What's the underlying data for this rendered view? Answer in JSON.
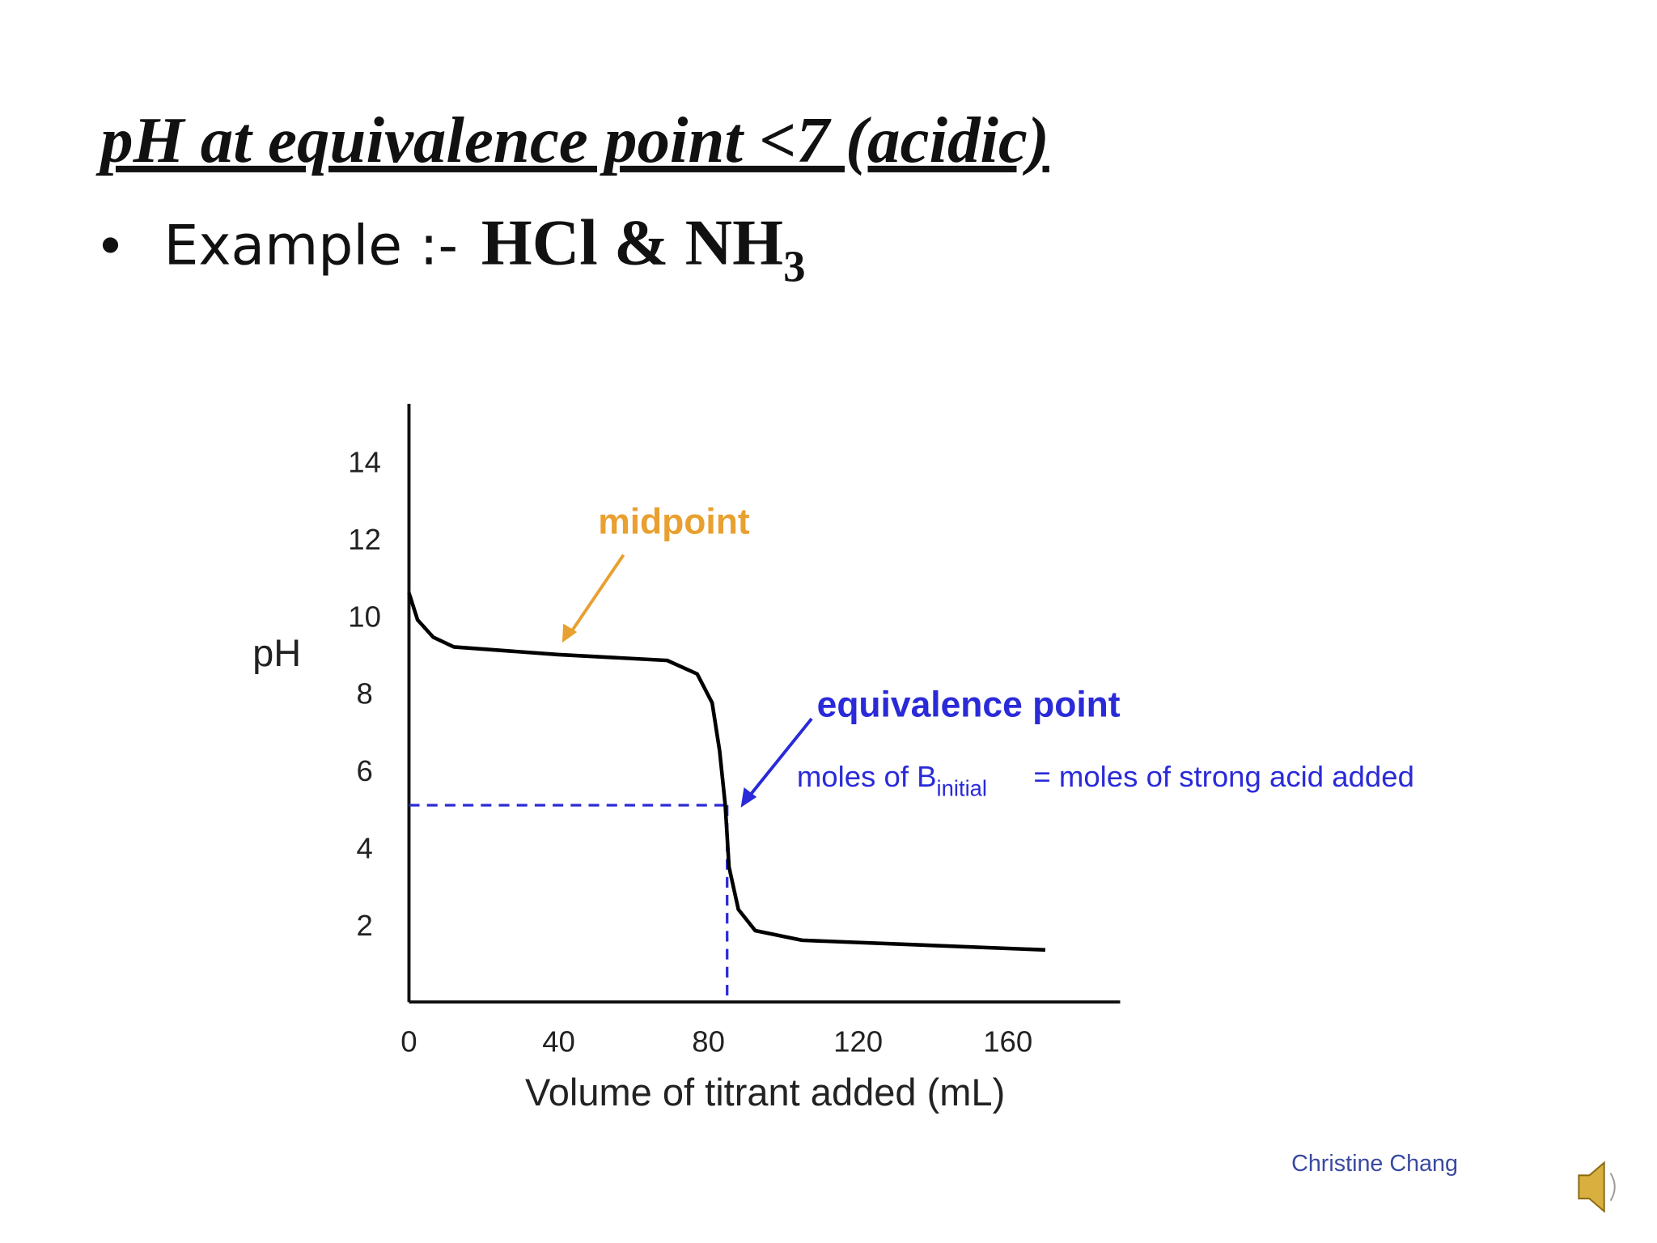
{
  "slide": {
    "title": "pH at equivalence point <7 (acidic)",
    "bullet_text": "Example :-",
    "bullet_formula": "HCl & NH",
    "bullet_subscript": "3"
  },
  "chart_data": {
    "type": "line",
    "ylabel": "pH",
    "xlabel": "Volume of titrant added (mL)",
    "x": [
      0,
      2.3,
      6.5,
      12,
      40,
      69,
      77,
      81,
      83,
      84.5,
      85.5,
      88,
      92.5,
      105,
      170
    ],
    "values": [
      10.6,
      9.9,
      9.45,
      9.2,
      9.0,
      8.85,
      8.5,
      7.75,
      6.5,
      5.1,
      3.5,
      2.4,
      1.85,
      1.6,
      1.35
    ],
    "color": "#000000",
    "xlim": [
      0,
      190
    ],
    "xticks": [
      0,
      40,
      80,
      120,
      160
    ],
    "ylim": [
      0,
      15.5
    ],
    "yticks": [
      2,
      4,
      6,
      8,
      10,
      12,
      14
    ],
    "equivalence_point": {
      "x": 85,
      "y": 5.1,
      "color": "#2a2ad8"
    },
    "annotations": {
      "midpoint": "midpoint",
      "equivalence": "equivalence point",
      "moles_left": "moles of B",
      "moles_sub": "initial",
      "moles_right": "= moles of strong acid added"
    }
  },
  "credit": "Christine Chang"
}
